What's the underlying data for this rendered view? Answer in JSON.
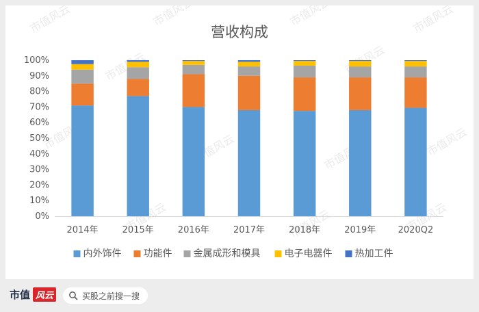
{
  "chart_data": {
    "type": "bar",
    "stacked": true,
    "title": "营收构成",
    "categories": [
      "2014年",
      "2015年",
      "2016年",
      "2017年",
      "2018年",
      "2019年",
      "2020Q2"
    ],
    "series": [
      {
        "name": "内外饰件",
        "color": "#5b9bd5",
        "values": [
          71,
          77,
          70,
          68,
          67.5,
          68,
          69.5
        ]
      },
      {
        "name": "功能件",
        "color": "#ed7d31",
        "values": [
          14,
          11,
          21,
          22,
          21.5,
          21,
          19.5
        ]
      },
      {
        "name": "金属成形和模具",
        "color": "#a5a5a5",
        "values": [
          9,
          7.5,
          6,
          6,
          7.5,
          7,
          7
        ]
      },
      {
        "name": "电子电器件",
        "color": "#ffc000",
        "values": [
          3.5,
          3.5,
          2.5,
          3,
          3,
          3.5,
          3.5
        ]
      },
      {
        "name": "热加工件",
        "color": "#4472c4",
        "values": [
          2.5,
          1,
          0.5,
          1,
          0.5,
          0.5,
          0.5
        ]
      }
    ],
    "yticks": [
      "0%",
      "10%",
      "20%",
      "30%",
      "40%",
      "50%",
      "60%",
      "70%",
      "80%",
      "90%",
      "100%"
    ],
    "ylim": [
      0,
      100
    ],
    "grid": false,
    "legend_position": "bottom"
  },
  "watermark": "市值风云",
  "footer": {
    "brand_text": "市值",
    "brand_badge": "风云",
    "search_placeholder": "买股之前搜一搜"
  }
}
